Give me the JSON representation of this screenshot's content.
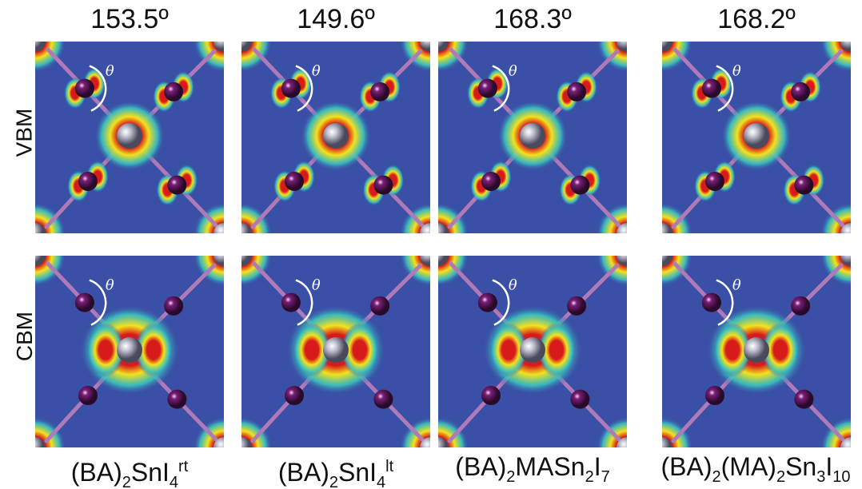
{
  "column_angles": [
    "153.5º",
    "149.6º",
    "168.3º",
    "168.2º"
  ],
  "row_labels": [
    "VBM",
    "CBM"
  ],
  "theta_symbol": "θ",
  "formulas": [
    {
      "main1": "(BA)",
      "sub1": "2",
      "main2": "SnI",
      "sub2": "4",
      "sup": "rt"
    },
    {
      "main1": "(BA)",
      "sub1": "2",
      "main2": "SnI",
      "sub2": "4",
      "sup": "lt"
    },
    {
      "main1": "(BA)",
      "sub1": "2",
      "main2": "MASn",
      "sub2": "2",
      "main3": "I",
      "sub3": "7"
    },
    {
      "main1": "(BA)",
      "sub1": "2",
      "main2": "(MA)",
      "sub2": "2",
      "main3": "Sn",
      "sub3": "3",
      "main4": "I",
      "sub4": "10"
    }
  ],
  "colors": {
    "background_field": "#3a4fa6",
    "iodine_atom": "#7a1e78",
    "tin_atom": "#9a9aaa",
    "density_high": "#d71a1a",
    "density_mid": "#f3e21c",
    "density_low": "#38c3c0"
  }
}
